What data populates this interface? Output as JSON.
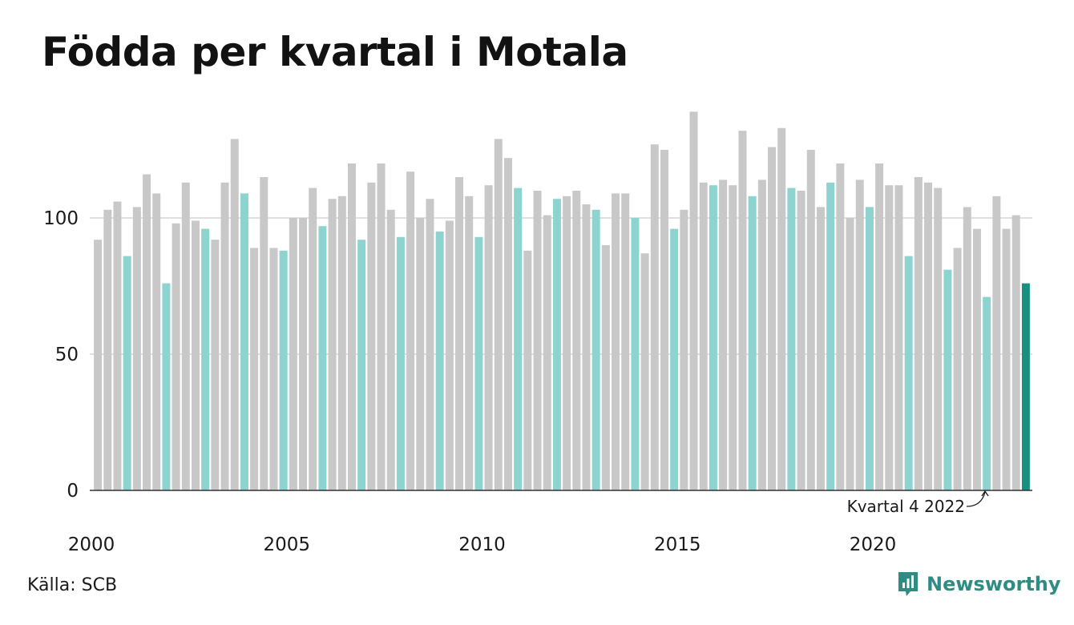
{
  "title": "Födda per kvartal i Motala",
  "source": "Källa: SCB",
  "brand": "Newsworthy",
  "colors": {
    "bar_default": "#c8c8c8",
    "bar_quarter4": "#8dd3cf",
    "bar_latest": "#17907f",
    "gridline": "#e0e0e0",
    "axis": "#333333",
    "brand": "#2f8c83"
  },
  "chart_data": {
    "type": "bar",
    "x_tick_labels": [
      "2000",
      "2005",
      "2010",
      "2015",
      "2020"
    ],
    "y_ticks": [
      0,
      50,
      100
    ],
    "ylim": [
      0,
      140
    ],
    "grid": true,
    "annotation": "Kvartal 4 2022",
    "series": [
      {
        "values": [
          92,
          103,
          106,
          86,
          104,
          116,
          109,
          76,
          98,
          113,
          99,
          96,
          92,
          113,
          129,
          109,
          89,
          115,
          89,
          88,
          100,
          100,
          111,
          97,
          107,
          108,
          120,
          92,
          113,
          120,
          103,
          93,
          117,
          100,
          107,
          95,
          99,
          115,
          108,
          93,
          112,
          129,
          122,
          111,
          88,
          110,
          101,
          107,
          108,
          110,
          105,
          103,
          90,
          109,
          109,
          100,
          87,
          127,
          125,
          96,
          103,
          139,
          113,
          112,
          114,
          112,
          132,
          108,
          114,
          126,
          133,
          111,
          110,
          125,
          104,
          113,
          120,
          100,
          114,
          104,
          120,
          112,
          112,
          86,
          115,
          113,
          111,
          81,
          89,
          104,
          96,
          71,
          108,
          96,
          101,
          76
        ]
      }
    ]
  }
}
